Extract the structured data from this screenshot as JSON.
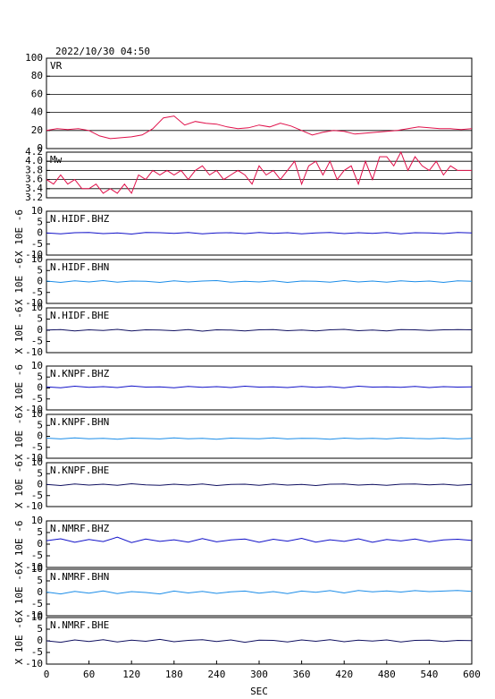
{
  "chart_data": [
    {
      "type": "line",
      "title": "2022/10/30 04:50",
      "label": "VR",
      "color": "#e0104a",
      "grid": true,
      "xlim": [
        0,
        600
      ],
      "ylim": [
        0,
        100
      ],
      "yticks": [
        0,
        20,
        40,
        60,
        80,
        100
      ],
      "x": [
        0,
        15,
        30,
        45,
        60,
        75,
        90,
        105,
        120,
        135,
        150,
        165,
        180,
        195,
        210,
        225,
        240,
        255,
        270,
        285,
        300,
        315,
        330,
        345,
        360,
        375,
        390,
        405,
        420,
        435,
        450,
        465,
        480,
        495,
        510,
        525,
        540,
        555,
        570,
        585,
        600
      ],
      "values": [
        20,
        22,
        21,
        22,
        20,
        14,
        11,
        12,
        13,
        15,
        22,
        34,
        36,
        26,
        30,
        28,
        27,
        24,
        22,
        23,
        26,
        24,
        28,
        25,
        20,
        15,
        18,
        20,
        19,
        16,
        17,
        18,
        19,
        20,
        22,
        24,
        23,
        22,
        22,
        21,
        22
      ]
    },
    {
      "type": "line",
      "label": "Mw",
      "color": "#e0104a",
      "grid": true,
      "xlim": [
        0,
        600
      ],
      "ylim": [
        3.2,
        4.2
      ],
      "yticks": [
        3.2,
        3.4,
        3.6,
        3.8,
        {
          "value": 4,
          "label": "4.0"
        },
        4.2
      ],
      "x": [
        0,
        10,
        20,
        30,
        40,
        50,
        60,
        70,
        80,
        90,
        100,
        110,
        120,
        130,
        140,
        150,
        160,
        170,
        180,
        190,
        200,
        210,
        220,
        230,
        240,
        250,
        260,
        270,
        280,
        290,
        300,
        310,
        320,
        330,
        340,
        350,
        360,
        370,
        380,
        390,
        400,
        410,
        420,
        430,
        440,
        450,
        460,
        470,
        480,
        490,
        500,
        510,
        520,
        530,
        540,
        550,
        560,
        570,
        580,
        590,
        600
      ],
      "values": [
        3.6,
        3.5,
        3.7,
        3.5,
        3.6,
        3.4,
        3.4,
        3.5,
        3.3,
        3.4,
        3.3,
        3.5,
        3.3,
        3.7,
        3.6,
        3.8,
        3.7,
        3.8,
        3.7,
        3.8,
        3.6,
        3.8,
        3.9,
        3.7,
        3.8,
        3.6,
        3.7,
        3.8,
        3.7,
        3.5,
        3.9,
        3.7,
        3.8,
        3.6,
        3.8,
        4.0,
        3.5,
        3.9,
        4.0,
        3.7,
        4.0,
        3.6,
        3.8,
        3.9,
        3.5,
        4.0,
        3.6,
        4.1,
        4.1,
        3.9,
        4.2,
        3.8,
        4.1,
        3.9,
        3.8,
        4.0,
        3.7,
        3.9,
        3.8,
        3.8,
        3.8
      ]
    },
    {
      "type": "line",
      "ylabel": "X 10E -6",
      "xlabel": "SEC",
      "xlim": [
        0,
        600
      ],
      "xticks": [
        0,
        60,
        120,
        180,
        240,
        300,
        360,
        420,
        480,
        540,
        600
      ],
      "ylim": [
        -10,
        10
      ],
      "yticks": [
        -10,
        -5,
        0,
        5,
        10
      ],
      "x": [
        0,
        20,
        40,
        60,
        80,
        100,
        120,
        140,
        160,
        180,
        200,
        220,
        240,
        260,
        280,
        300,
        320,
        340,
        360,
        380,
        400,
        420,
        440,
        460,
        480,
        500,
        520,
        540,
        560,
        580,
        600
      ],
      "series": [
        {
          "name": "N.HIDF.BHZ",
          "color": "#1010c8",
          "values": [
            0.1,
            -0.3,
            0.2,
            0.3,
            -0.2,
            0.1,
            -0.4,
            0.3,
            0.2,
            -0.1,
            0.3,
            -0.3,
            0.1,
            0.2,
            -0.2,
            0.3,
            -0.1,
            0.2,
            -0.3,
            0.1,
            0.3,
            -0.2,
            0.2,
            -0.1,
            0.3,
            -0.3,
            0.2,
            0.1,
            -0.2,
            0.3,
            0.1
          ]
        },
        {
          "name": "N.HIDF.BHN",
          "color": "#1a8ce8",
          "values": [
            0.2,
            -0.4,
            0.3,
            -0.2,
            0.4,
            -0.3,
            0.2,
            0.1,
            -0.4,
            0.3,
            -0.2,
            0.2,
            0.4,
            -0.3,
            0.1,
            -0.2,
            0.3,
            -0.4,
            0.2,
            0.1,
            -0.3,
            0.4,
            -0.2,
            0.2,
            -0.3,
            0.3,
            -0.1,
            0.2,
            -0.4,
            0.3,
            0.1
          ]
        },
        {
          "name": "N.HIDF.BHE",
          "color": "#101060",
          "values": [
            0.1,
            0.3,
            -0.3,
            0.2,
            -0.1,
            0.4,
            -0.3,
            0.2,
            0.1,
            -0.2,
            0.3,
            -0.4,
            0.2,
            0.1,
            -0.3,
            0.2,
            0.3,
            -0.2,
            0.1,
            -0.3,
            0.2,
            0.4,
            -0.2,
            0.1,
            -0.3,
            0.3,
            0.2,
            -0.1,
            0.2,
            0.3,
            0.2
          ]
        },
        {
          "name": "N.KNPF.BHZ",
          "color": "#1010c8",
          "values": [
            0.5,
            0.1,
            0.8,
            0.3,
            0.6,
            0.2,
            0.9,
            0.4,
            0.5,
            0.1,
            0.7,
            0.3,
            0.6,
            0.2,
            0.8,
            0.4,
            0.5,
            0.2,
            0.7,
            0.3,
            0.6,
            0.1,
            0.8,
            0.4,
            0.5,
            0.3,
            0.7,
            0.2,
            0.6,
            0.4,
            0.5
          ]
        },
        {
          "name": "N.KNPF.BHN",
          "color": "#1a8ce8",
          "values": [
            -0.8,
            -1.2,
            -0.7,
            -1.1,
            -0.9,
            -1.3,
            -0.8,
            -1.0,
            -1.2,
            -0.7,
            -1.1,
            -0.9,
            -1.3,
            -0.8,
            -1.0,
            -1.1,
            -0.7,
            -1.2,
            -0.9,
            -1.0,
            -1.3,
            -0.8,
            -1.1,
            -0.9,
            -1.2,
            -0.7,
            -1.0,
            -1.1,
            -0.8,
            -1.2,
            -0.9
          ]
        },
        {
          "name": "N.KNPF.BHE",
          "color": "#101060",
          "values": [
            0.1,
            -0.4,
            0.3,
            -0.2,
            0.2,
            -0.3,
            0.4,
            -0.1,
            -0.3,
            0.2,
            -0.2,
            0.3,
            -0.4,
            0.1,
            0.2,
            -0.3,
            0.3,
            -0.2,
            0.1,
            -0.4,
            0.2,
            0.3,
            -0.2,
            0.1,
            -0.3,
            0.2,
            0.3,
            -0.1,
            0.2,
            -0.3,
            0.1
          ]
        },
        {
          "name": "N.NMRF.BHZ",
          "color": "#1010c8",
          "values": [
            1.5,
            2.3,
            0.8,
            2.0,
            1.1,
            3.0,
            0.7,
            2.2,
            1.2,
            1.9,
            0.9,
            2.4,
            1.0,
            1.8,
            2.2,
            0.8,
            2.1,
            1.3,
            2.5,
            0.9,
            1.9,
            1.2,
            2.3,
            0.8,
            2.0,
            1.4,
            2.2,
            1.0,
            1.8,
            2.1,
            1.6
          ]
        },
        {
          "name": "N.NMRF.BHN",
          "color": "#1a8ce8",
          "values": [
            0.2,
            -0.6,
            0.5,
            -0.3,
            0.7,
            -0.5,
            0.4,
            0.0,
            -0.6,
            0.6,
            -0.2,
            0.5,
            -0.4,
            0.3,
            0.6,
            -0.3,
            0.4,
            -0.5,
            0.6,
            0.1,
            0.8,
            -0.2,
            0.9,
            0.3,
            0.7,
            0.2,
            0.8,
            0.4,
            0.6,
            0.9,
            0.5
          ]
        },
        {
          "name": "N.NMRF.BHE",
          "color": "#101060",
          "values": [
            0.0,
            -0.6,
            0.4,
            -0.3,
            0.5,
            -0.5,
            0.3,
            -0.2,
            0.6,
            -0.4,
            0.2,
            0.5,
            -0.3,
            0.4,
            -0.6,
            0.3,
            0.2,
            -0.5,
            0.4,
            -0.2,
            0.5,
            -0.4,
            0.3,
            -0.1,
            0.4,
            -0.5,
            0.2,
            0.3,
            -0.3,
            0.2,
            0.1
          ]
        }
      ]
    }
  ]
}
